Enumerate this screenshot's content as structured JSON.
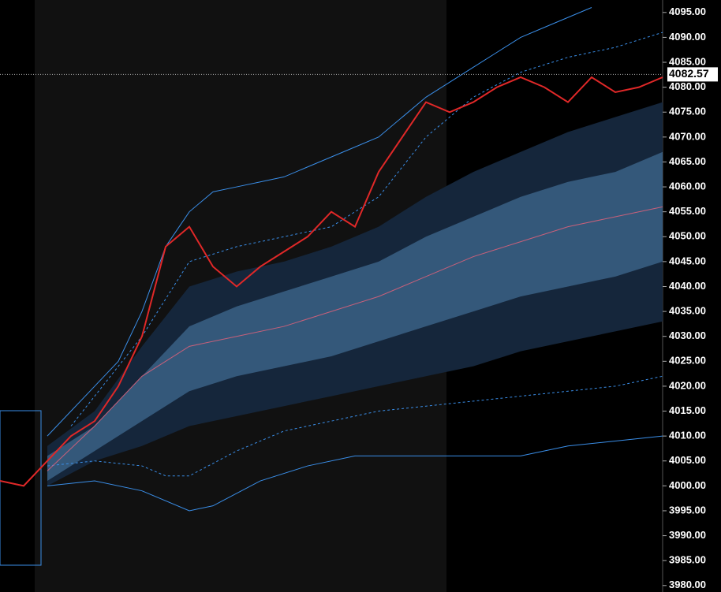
{
  "chart_data": {
    "type": "line",
    "xlim": [
      0,
      28
    ],
    "ylim": [
      3978.7,
      4097.5
    ],
    "yticks": [
      {
        "value": 3980,
        "label": "3980.00"
      },
      {
        "value": 3985,
        "label": "3985.00"
      },
      {
        "value": 3990,
        "label": "3990.00"
      },
      {
        "value": 3995,
        "label": "3995.00"
      },
      {
        "value": 4000,
        "label": "4000.00"
      },
      {
        "value": 4005,
        "label": "4005.00"
      },
      {
        "value": 4010,
        "label": "4010.00"
      },
      {
        "value": 4015,
        "label": "4015.00"
      },
      {
        "value": 4020,
        "label": "4020.00"
      },
      {
        "value": 4025,
        "label": "4025.00"
      },
      {
        "value": 4030,
        "label": "4030.00"
      },
      {
        "value": 4035,
        "label": "4035.00"
      },
      {
        "value": 4040,
        "label": "4040.00"
      },
      {
        "value": 4045,
        "label": "4045.00"
      },
      {
        "value": 4050,
        "label": "4050.00"
      },
      {
        "value": 4055,
        "label": "4055.00"
      },
      {
        "value": 4060,
        "label": "4060.00"
      },
      {
        "value": 4065,
        "label": "4065.00"
      },
      {
        "value": 4070,
        "label": "4070.00"
      },
      {
        "value": 4075,
        "label": "4075.00"
      },
      {
        "value": 4080,
        "label": "4080.00"
      },
      {
        "value": 4085,
        "label": "4085.00"
      },
      {
        "value": 4090,
        "label": "4090.00"
      },
      {
        "value": 4095,
        "label": "4095.00"
      }
    ],
    "last_price": 4082.57,
    "bands": [
      {
        "color": "#15263b",
        "x": [
          2,
          4,
          6,
          8,
          10,
          12,
          14,
          16,
          18,
          20,
          22,
          24,
          26,
          28
        ],
        "upper": [
          4008,
          4015,
          4028,
          4040,
          4043,
          4045,
          4048,
          4052,
          4058,
          4063,
          4067,
          4071,
          4074,
          4077
        ],
        "lower": [
          4000,
          4005,
          4008,
          4012,
          4014,
          4016,
          4018,
          4020,
          4022,
          4024,
          4027,
          4029,
          4031,
          4033
        ]
      },
      {
        "color": "#34587a",
        "x": [
          2,
          4,
          6,
          8,
          10,
          12,
          14,
          16,
          18,
          20,
          22,
          24,
          26,
          28
        ],
        "upper": [
          4006,
          4012,
          4022,
          4032,
          4036,
          4039,
          4042,
          4045,
          4050,
          4054,
          4058,
          4061,
          4063,
          4067
        ],
        "lower": [
          4001,
          4007,
          4013,
          4019,
          4022,
          4024,
          4026,
          4029,
          4032,
          4035,
          4038,
          4040,
          4042,
          4045
        ]
      }
    ],
    "series": [
      {
        "color": "#3a8ee8",
        "dashed": false,
        "x": [
          2,
          3,
          4,
          5,
          6,
          7,
          8,
          9,
          10,
          11,
          12,
          13,
          14,
          15,
          16,
          17,
          18,
          19,
          20,
          21,
          22,
          23,
          24,
          25
        ],
        "values": [
          4010,
          4015,
          4020,
          4025,
          4035,
          4048,
          4055,
          4059,
          4060,
          4061,
          4062,
          4064,
          4066,
          4068,
          4070,
          4074,
          4078,
          4081,
          4084,
          4087,
          4090,
          4092,
          4094,
          4096
        ]
      },
      {
        "color": "#3a8ee8",
        "dashed": false,
        "x": [
          2,
          4,
          6,
          8,
          9,
          11,
          13,
          15,
          16,
          18,
          20,
          22,
          24,
          26,
          28
        ],
        "values": [
          4000,
          4001,
          3999,
          3995,
          3996,
          4001,
          4004,
          4006,
          4006,
          4006,
          4006,
          4006,
          4008,
          4009,
          4010
        ]
      },
      {
        "color": "#3a8ee8",
        "dashed": true,
        "x": [
          3,
          6,
          8,
          10,
          12,
          14,
          16,
          18,
          20,
          22,
          24,
          26,
          28
        ],
        "values": [
          4012,
          4030,
          4045,
          4048,
          4050,
          4052,
          4058,
          4070,
          4078,
          4083,
          4086,
          4088,
          4091
        ]
      },
      {
        "color": "#3a8ee8",
        "dashed": true,
        "x": [
          2,
          4,
          6,
          7,
          8,
          10,
          12,
          14,
          16,
          18,
          20,
          22,
          24,
          26,
          28
        ],
        "values": [
          4004,
          4005,
          4004,
          4002,
          4002,
          4007,
          4011,
          4013,
          4015,
          4016,
          4017,
          4018,
          4019,
          4020,
          4022
        ]
      },
      {
        "color": "#c8607a",
        "dashed": false,
        "x": [
          2,
          4,
          6,
          8,
          10,
          12,
          14,
          16,
          18,
          20,
          22,
          24,
          26,
          28
        ],
        "values": [
          4003,
          4012,
          4022,
          4028,
          4030,
          4032,
          4035,
          4038,
          4042,
          4046,
          4049,
          4052,
          4054,
          4056
        ]
      },
      {
        "color": "#e02828",
        "dashed": false,
        "x": [
          0,
          1,
          2,
          3,
          4,
          5,
          6,
          7,
          8,
          9,
          10,
          11,
          12,
          13,
          14,
          15,
          16,
          17,
          18,
          19,
          20,
          21,
          22,
          23,
          24,
          25,
          26,
          27,
          28
        ],
        "values": [
          4001,
          4000,
          4005,
          4010,
          4013,
          4020,
          4030,
          4048,
          4052,
          4044,
          4040,
          4044,
          4047,
          4050,
          4055,
          4052,
          4063,
          4070,
          4077,
          4075,
          4077,
          4080,
          4082,
          4080,
          4077,
          4082,
          4079,
          4080,
          4082
        ]
      }
    ]
  }
}
